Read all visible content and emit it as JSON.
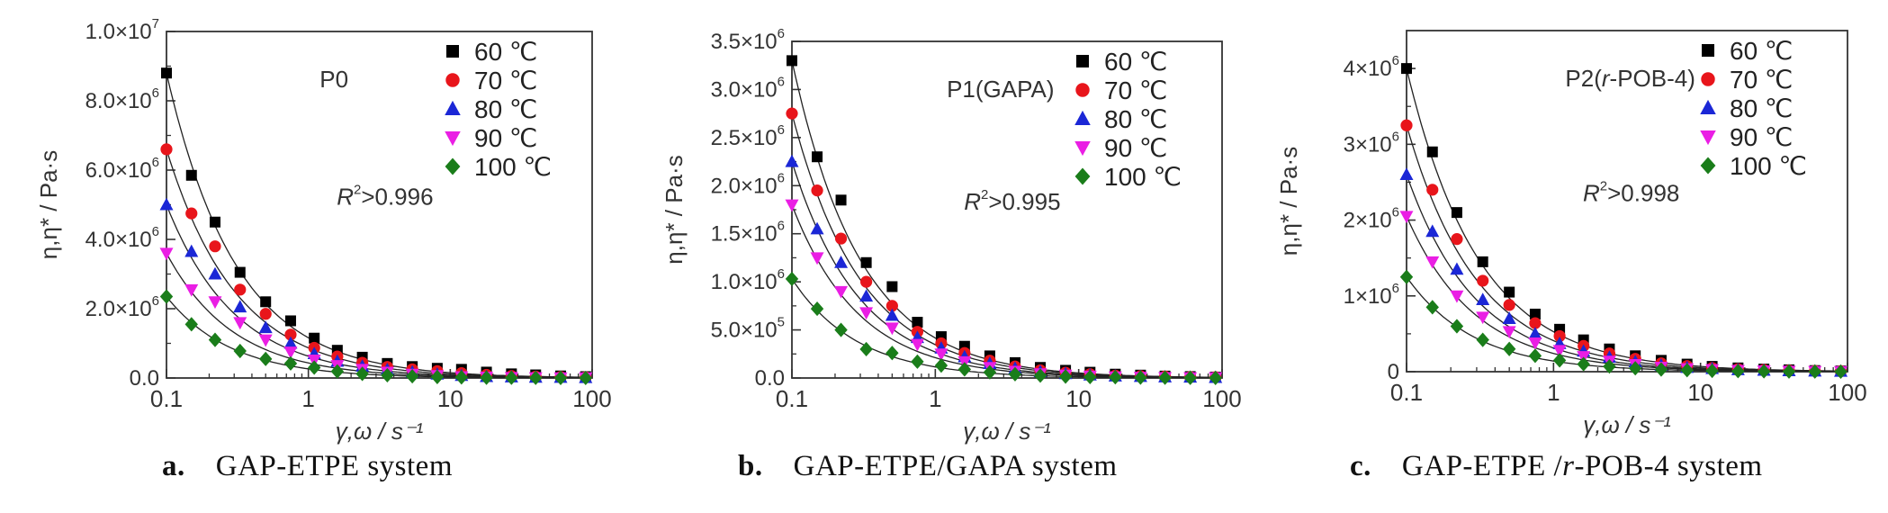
{
  "colors": {
    "60": "#000000",
    "70": "#e8151b",
    "80": "#1b27d6",
    "90": "#ea1ee4",
    "100": "#1a7d1a",
    "fit_line": "#222222"
  },
  "series_markers": {
    "60": "square",
    "70": "circle",
    "80": "triangle-up",
    "90": "triangle-down",
    "100": "diamond"
  },
  "chart_data": [
    {
      "type": "scatter",
      "panel_letter": "a.",
      "caption": "GAP-ETPE system",
      "annotation": "P0",
      "r2_text": ">0.996",
      "xlabel": "γ,ω / s⁻¹",
      "ylabel": "η,η* / Pa·s",
      "xscale": "log",
      "xlim": [
        0.1,
        100
      ],
      "ylim": [
        0,
        10000000
      ],
      "xticks": [
        0.1,
        1,
        10,
        100
      ],
      "xtick_labels": [
        "0.1",
        "1",
        "10",
        "100"
      ],
      "yticks": [
        0,
        2000000,
        4000000,
        6000000,
        8000000,
        10000000
      ],
      "ytick_labels": [
        {
          "m": "0.0",
          "e": ""
        },
        {
          "m": "2.0×10",
          "e": "6"
        },
        {
          "m": "4.0×10",
          "e": "6"
        },
        {
          "m": "6.0×10",
          "e": "6"
        },
        {
          "m": "8.0×10",
          "e": "6"
        },
        {
          "m": "1.0×10",
          "e": "7"
        }
      ],
      "x": [
        0.1,
        0.15,
        0.22,
        0.33,
        0.5,
        0.75,
        1.1,
        1.6,
        2.4,
        3.6,
        5.4,
        8.1,
        12,
        18,
        27,
        40,
        60,
        90
      ],
      "series": [
        {
          "name": "60 ℃",
          "values": [
            8800000,
            5850000,
            4500000,
            3050000,
            2200000,
            1650000,
            1150000,
            800000,
            600000,
            420000,
            330000,
            280000,
            250000,
            170000,
            120000,
            90000,
            60000,
            40000
          ]
        },
        {
          "name": "70 ℃",
          "values": [
            6600000,
            4750000,
            3800000,
            2550000,
            1850000,
            1250000,
            870000,
            620000,
            440000,
            320000,
            250000,
            200000,
            140000,
            90000,
            60000,
            40000,
            30000,
            20000
          ]
        },
        {
          "name": "80 ℃",
          "values": [
            5000000,
            3650000,
            3000000,
            2050000,
            1450000,
            1000000,
            700000,
            480000,
            340000,
            240000,
            170000,
            110000,
            70000,
            40000,
            30000,
            20000,
            15000,
            10000
          ]
        },
        {
          "name": "90 ℃",
          "values": [
            3600000,
            2550000,
            2200000,
            1600000,
            1100000,
            750000,
            520000,
            360000,
            250000,
            170000,
            110000,
            70000,
            40000,
            25000,
            15000,
            10000,
            8000,
            5000
          ]
        },
        {
          "name": "100 ℃",
          "values": [
            2350000,
            1550000,
            1100000,
            780000,
            550000,
            420000,
            300000,
            190000,
            120000,
            80000,
            50000,
            30000,
            20000,
            10000,
            8000,
            5000,
            3000,
            2000
          ]
        }
      ],
      "fits": [
        {
          "y0": 8800000,
          "n": 0.88
        },
        {
          "y0": 6600000,
          "n": 0.88
        },
        {
          "y0": 5000000,
          "n": 0.9
        },
        {
          "y0": 3600000,
          "n": 0.92
        },
        {
          "y0": 2350000,
          "n": 0.95
        }
      ],
      "legend_position": "top-right",
      "grid": false
    },
    {
      "type": "scatter",
      "panel_letter": "b.",
      "caption": "GAP-ETPE/GAPA system",
      "annotation": "P1(GAPA)",
      "r2_text": ">0.995",
      "xlabel": "γ,ω / s⁻¹",
      "ylabel": "η,η* / Pa·s",
      "xscale": "log",
      "xlim": [
        0.1,
        100
      ],
      "ylim": [
        0,
        3500000
      ],
      "xticks": [
        0.1,
        1,
        10,
        100
      ],
      "xtick_labels": [
        "0.1",
        "1",
        "10",
        "100"
      ],
      "yticks": [
        0,
        500000,
        1000000,
        1500000,
        2000000,
        2500000,
        3000000,
        3500000
      ],
      "ytick_labels": [
        {
          "m": "0.0",
          "e": ""
        },
        {
          "m": "5.0×10",
          "e": "5"
        },
        {
          "m": "1.0×10",
          "e": "6"
        },
        {
          "m": "1.5×10",
          "e": "6"
        },
        {
          "m": "2.0×10",
          "e": "6"
        },
        {
          "m": "2.5×10",
          "e": "6"
        },
        {
          "m": "3.0×10",
          "e": "6"
        },
        {
          "m": "3.5×10",
          "e": "6"
        }
      ],
      "x": [
        0.1,
        0.15,
        0.22,
        0.33,
        0.5,
        0.75,
        1.1,
        1.6,
        2.4,
        3.6,
        5.4,
        8.1,
        12,
        18,
        27,
        40,
        60,
        90
      ],
      "series": [
        {
          "name": "60 ℃",
          "values": [
            3300000,
            2300000,
            1850000,
            1200000,
            950000,
            580000,
            430000,
            330000,
            230000,
            160000,
            110000,
            80000,
            60000,
            40000,
            30000,
            20000,
            15000,
            10000
          ]
        },
        {
          "name": "70 ℃",
          "values": [
            2750000,
            1950000,
            1450000,
            1000000,
            750000,
            480000,
            360000,
            260000,
            180000,
            120000,
            80000,
            55000,
            40000,
            25000,
            20000,
            15000,
            10000,
            8000
          ]
        },
        {
          "name": "80 ℃",
          "values": [
            2250000,
            1550000,
            1200000,
            850000,
            650000,
            420000,
            310000,
            220000,
            150000,
            100000,
            65000,
            45000,
            30000,
            20000,
            15000,
            10000,
            8000,
            5000
          ]
        },
        {
          "name": "90 ℃",
          "values": [
            1800000,
            1250000,
            900000,
            680000,
            520000,
            350000,
            250000,
            170000,
            110000,
            70000,
            45000,
            30000,
            20000,
            12000,
            8000,
            5000,
            4000,
            3000
          ]
        },
        {
          "name": "100 ℃",
          "values": [
            1030000,
            720000,
            500000,
            300000,
            260000,
            170000,
            130000,
            90000,
            60000,
            40000,
            25000,
            15000,
            10000,
            8000,
            5000,
            3000,
            2000,
            1000
          ]
        }
      ],
      "fits": [
        {
          "y0": 3300000,
          "n": 0.9
        },
        {
          "y0": 2750000,
          "n": 0.9
        },
        {
          "y0": 2250000,
          "n": 0.92
        },
        {
          "y0": 1800000,
          "n": 0.93
        },
        {
          "y0": 1030000,
          "n": 0.95
        }
      ],
      "legend_position": "top-right",
      "grid": false
    },
    {
      "type": "scatter",
      "panel_letter": "c.",
      "caption": "GAP-ETPE /r-POB-4 system",
      "caption_parts": {
        "before": "GAP-ETPE /",
        "italic": "r",
        "after": "-POB-4 system"
      },
      "annotation": "P2(r-POB-4)",
      "annotation_parts": {
        "before": "P2(",
        "italic": "r",
        "after": "-POB-4)"
      },
      "r2_text": ">0.998",
      "xlabel": "γ,ω / s⁻¹",
      "ylabel": "η,η* / Pa·s",
      "xscale": "log",
      "xlim": [
        0.1,
        100
      ],
      "ylim": [
        0,
        4500000
      ],
      "xticks": [
        0.1,
        1,
        10,
        100
      ],
      "xtick_labels": [
        "0.1",
        "1",
        "10",
        "100"
      ],
      "yticks": [
        0,
        1000000,
        2000000,
        3000000,
        4000000
      ],
      "ytick_labels": [
        {
          "m": "0",
          "e": ""
        },
        {
          "m": "1×10",
          "e": "6"
        },
        {
          "m": "2×10",
          "e": "6"
        },
        {
          "m": "3×10",
          "e": "6"
        },
        {
          "m": "4×10",
          "e": "6"
        }
      ],
      "x": [
        0.1,
        0.15,
        0.22,
        0.33,
        0.5,
        0.75,
        1.1,
        1.6,
        2.4,
        3.6,
        5.4,
        8.1,
        12,
        18,
        27,
        40,
        60,
        90
      ],
      "series": [
        {
          "name": "60 ℃",
          "values": [
            4000000,
            2900000,
            2100000,
            1450000,
            1050000,
            760000,
            560000,
            420000,
            300000,
            210000,
            150000,
            100000,
            70000,
            50000,
            35000,
            25000,
            15000,
            10000
          ]
        },
        {
          "name": "70 ℃",
          "values": [
            3250000,
            2400000,
            1750000,
            1200000,
            880000,
            640000,
            470000,
            340000,
            240000,
            170000,
            110000,
            75000,
            50000,
            35000,
            25000,
            15000,
            10000,
            8000
          ]
        },
        {
          "name": "80 ℃",
          "values": [
            2600000,
            1850000,
            1350000,
            950000,
            700000,
            500000,
            370000,
            270000,
            190000,
            130000,
            85000,
            55000,
            40000,
            25000,
            18000,
            12000,
            8000,
            5000
          ]
        },
        {
          "name": "90 ℃",
          "values": [
            2050000,
            1450000,
            1000000,
            720000,
            530000,
            380000,
            280000,
            200000,
            140000,
            95000,
            60000,
            40000,
            28000,
            18000,
            12000,
            8000,
            5000,
            3000
          ]
        },
        {
          "name": "100 ℃",
          "values": [
            1250000,
            850000,
            600000,
            420000,
            300000,
            210000,
            150000,
            100000,
            70000,
            45000,
            30000,
            20000,
            12000,
            8000,
            5000,
            3000,
            2000,
            1000
          ]
        }
      ],
      "fits": [
        {
          "y0": 4000000,
          "n": 0.88
        },
        {
          "y0": 3250000,
          "n": 0.9
        },
        {
          "y0": 2600000,
          "n": 0.92
        },
        {
          "y0": 2050000,
          "n": 0.93
        },
        {
          "y0": 1250000,
          "n": 0.95
        }
      ],
      "legend_position": "top-right",
      "grid": false
    }
  ]
}
